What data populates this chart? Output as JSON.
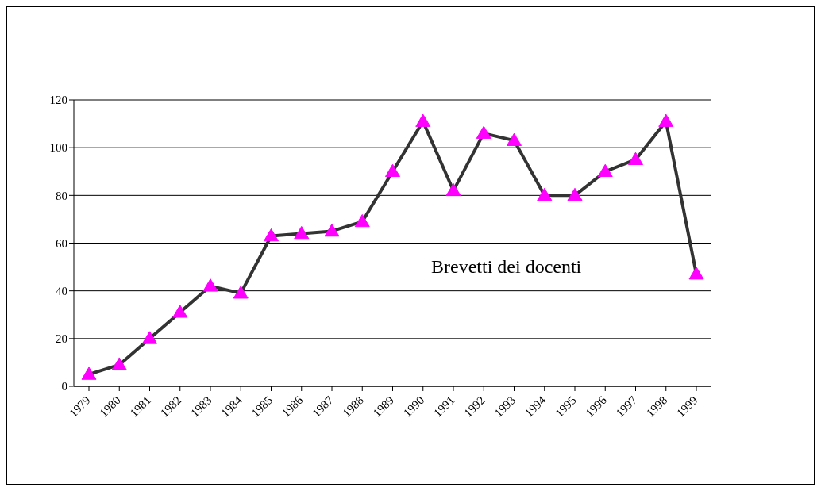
{
  "chart_data": {
    "type": "line",
    "categories": [
      "1979",
      "1980",
      "1981",
      "1982",
      "1983",
      "1984",
      "1985",
      "1986",
      "1987",
      "1988",
      "1989",
      "1990",
      "1991",
      "1992",
      "1993",
      "1994",
      "1995",
      "1996",
      "1997",
      "1998",
      "1999"
    ],
    "series": [
      {
        "name": "Brevetti dei docenti",
        "color": "#333333",
        "values": [
          5,
          9,
          20,
          31,
          42,
          39,
          63,
          64,
          65,
          69,
          90,
          111,
          82,
          106,
          103,
          80,
          80,
          90,
          95,
          111,
          47
        ],
        "colors": [
          "#ff00ff",
          "#ff00ff",
          "#ff00ff",
          "#ff00ff",
          "#ff00ff",
          "#ff00ff",
          "#ff00ff",
          "#ff00ff",
          "#ff00ff",
          "#ff00ff",
          "#ff00ff",
          "#ff00ff",
          "#ff00ff",
          "#ff00ff",
          "#ff00ff",
          "#ff00ff",
          "#ff00ff",
          "#ff00ff",
          "#ff00ff",
          "#ff00ff",
          "#ff00ff"
        ]
      }
    ],
    "marker": "triangle",
    "line_style": "solid",
    "ylim": [
      0,
      120
    ],
    "yticks": [
      0,
      20,
      40,
      60,
      80,
      100,
      120
    ],
    "grid": "y",
    "legend": false
  }
}
